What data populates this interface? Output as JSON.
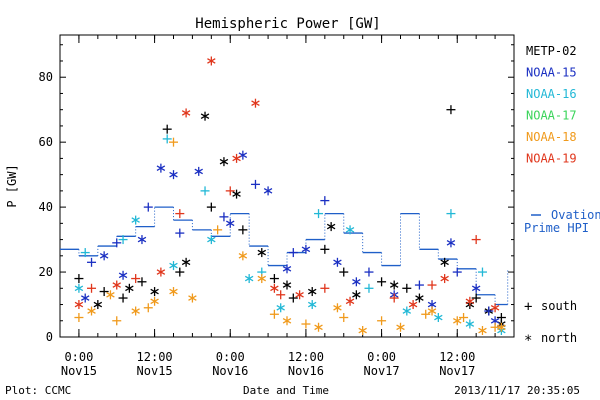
{
  "chart_data": {
    "type": "scatter",
    "title": "Hemispheric Power [GW]",
    "xlabel": "Date and Time",
    "ylabel": "P [GW]",
    "xlim": [
      "2013-11-14T21:00",
      "2013-11-17T21:00"
    ],
    "ylim": [
      0,
      93
    ],
    "yticks": [
      0,
      20,
      40,
      60,
      80
    ],
    "xticks": [
      {
        "t": "2013-11-15T00:00",
        "time": "0:00",
        "date": "Nov15"
      },
      {
        "t": "2013-11-15T12:00",
        "time": "12:00",
        "date": "Nov15"
      },
      {
        "t": "2013-11-16T00:00",
        "time": "0:00",
        "date": "Nov16"
      },
      {
        "t": "2013-11-16T12:00",
        "time": "12:00",
        "date": "Nov16"
      },
      {
        "t": "2013-11-17T00:00",
        "time": "0:00",
        "date": "Nov17"
      },
      {
        "t": "2013-11-17T12:00",
        "time": "12:00",
        "date": "Nov17"
      }
    ],
    "legend_placement": "right",
    "marker_legend": {
      "south": "south",
      "north": "north"
    },
    "ovation": {
      "name": "Ovation Prime HPI",
      "color": "#1f5fc8",
      "points": [
        [
          "2013-11-14T21:00",
          27
        ],
        [
          "2013-11-15T00:00",
          25
        ],
        [
          "2013-11-15T03:00",
          28
        ],
        [
          "2013-11-15T06:00",
          31
        ],
        [
          "2013-11-15T09:00",
          34
        ],
        [
          "2013-11-15T12:00",
          40
        ],
        [
          "2013-11-15T15:00",
          36
        ],
        [
          "2013-11-15T18:00",
          33
        ],
        [
          "2013-11-15T21:00",
          31
        ],
        [
          "2013-11-16T00:00",
          38
        ],
        [
          "2013-11-16T03:00",
          28
        ],
        [
          "2013-11-16T06:00",
          22
        ],
        [
          "2013-11-16T09:00",
          26
        ],
        [
          "2013-11-16T12:00",
          30
        ],
        [
          "2013-11-16T15:00",
          38
        ],
        [
          "2013-11-16T18:00",
          32
        ],
        [
          "2013-11-16T21:00",
          26
        ],
        [
          "2013-11-17T00:00",
          22
        ],
        [
          "2013-11-17T03:00",
          38
        ],
        [
          "2013-11-17T06:00",
          27
        ],
        [
          "2013-11-17T09:00",
          24
        ],
        [
          "2013-11-17T12:00",
          21
        ],
        [
          "2013-11-17T15:00",
          13
        ],
        [
          "2013-11-17T18:00",
          10
        ],
        [
          "2013-11-17T20:00",
          21
        ]
      ]
    },
    "series": [
      {
        "name": "METP-02",
        "color": "#000000",
        "south": [
          [
            "2013-11-15T00:00",
            18
          ],
          [
            "2013-11-15T04:00",
            14
          ],
          [
            "2013-11-15T07:00",
            12
          ],
          [
            "2013-11-15T10:00",
            17
          ],
          [
            "2013-11-15T14:00",
            64
          ],
          [
            "2013-11-15T16:00",
            20
          ],
          [
            "2013-11-15T21:00",
            40
          ],
          [
            "2013-11-16T02:00",
            33
          ],
          [
            "2013-11-16T07:00",
            18
          ],
          [
            "2013-11-16T10:00",
            12
          ],
          [
            "2013-11-16T15:00",
            27
          ],
          [
            "2013-11-16T18:00",
            20
          ],
          [
            "2013-11-17T00:00",
            17
          ],
          [
            "2013-11-17T04:00",
            15
          ],
          [
            "2013-11-17T11:00",
            70
          ],
          [
            "2013-11-17T15:00",
            12
          ],
          [
            "2013-11-17T19:00",
            6
          ]
        ],
        "north": [
          [
            "2013-11-15T03:00",
            10
          ],
          [
            "2013-11-15T08:00",
            15
          ],
          [
            "2013-11-15T12:00",
            14
          ],
          [
            "2013-11-15T17:00",
            23
          ],
          [
            "2013-11-15T20:00",
            68
          ],
          [
            "2013-11-15T23:00",
            54
          ],
          [
            "2013-11-16T01:00",
            44
          ],
          [
            "2013-11-16T05:00",
            26
          ],
          [
            "2013-11-16T09:00",
            16
          ],
          [
            "2013-11-16T13:00",
            14
          ],
          [
            "2013-11-16T16:00",
            34
          ],
          [
            "2013-11-16T20:00",
            13
          ],
          [
            "2013-11-17T02:00",
            16
          ],
          [
            "2013-11-17T06:00",
            12
          ],
          [
            "2013-11-17T10:00",
            23
          ],
          [
            "2013-11-17T14:00",
            10
          ],
          [
            "2013-11-17T17:00",
            8
          ],
          [
            "2013-11-17T19:00",
            4
          ]
        ]
      },
      {
        "name": "NOAA-15",
        "color": "#1a2fc2",
        "south": [
          [
            "2013-11-15T02:00",
            23
          ],
          [
            "2013-11-15T06:00",
            29
          ],
          [
            "2013-11-15T11:00",
            40
          ],
          [
            "2013-11-15T16:00",
            32
          ],
          [
            "2013-11-15T23:00",
            37
          ],
          [
            "2013-11-16T04:00",
            47
          ],
          [
            "2013-11-16T10:00",
            26
          ],
          [
            "2013-11-16T15:00",
            42
          ],
          [
            "2013-11-16T22:00",
            20
          ],
          [
            "2013-11-17T06:00",
            16
          ],
          [
            "2013-11-17T12:00",
            20
          ],
          [
            "2013-11-17T17:00",
            8
          ]
        ],
        "north": [
          [
            "2013-11-15T01:00",
            12
          ],
          [
            "2013-11-15T04:00",
            25
          ],
          [
            "2013-11-15T07:00",
            19
          ],
          [
            "2013-11-15T10:00",
            30
          ],
          [
            "2013-11-15T13:00",
            52
          ],
          [
            "2013-11-15T15:00",
            50
          ],
          [
            "2013-11-15T19:00",
            51
          ],
          [
            "2013-11-16T00:00",
            35
          ],
          [
            "2013-11-16T02:00",
            56
          ],
          [
            "2013-11-16T06:00",
            45
          ],
          [
            "2013-11-16T09:00",
            21
          ],
          [
            "2013-11-16T12:00",
            27
          ],
          [
            "2013-11-16T17:00",
            23
          ],
          [
            "2013-11-16T20:00",
            17
          ],
          [
            "2013-11-17T02:00",
            13
          ],
          [
            "2013-11-17T08:00",
            10
          ],
          [
            "2013-11-17T11:00",
            29
          ],
          [
            "2013-11-17T15:00",
            15
          ],
          [
            "2013-11-17T18:00",
            5
          ]
        ]
      },
      {
        "name": "NOAA-16",
        "color": "#22b8d6",
        "south": [
          [
            "2013-11-15T01:00",
            26
          ],
          [
            "2013-11-15T07:00",
            30
          ],
          [
            "2013-11-15T14:00",
            61
          ],
          [
            "2013-11-15T20:00",
            45
          ],
          [
            "2013-11-16T05:00",
            20
          ],
          [
            "2013-11-16T14:00",
            38
          ],
          [
            "2013-11-16T22:00",
            15
          ],
          [
            "2013-11-17T11:00",
            38
          ],
          [
            "2013-11-17T16:00",
            20
          ]
        ],
        "north": [
          [
            "2013-11-15T00:00",
            15
          ],
          [
            "2013-11-15T09:00",
            36
          ],
          [
            "2013-11-15T15:00",
            22
          ],
          [
            "2013-11-15T21:00",
            30
          ],
          [
            "2013-11-16T03:00",
            18
          ],
          [
            "2013-11-16T08:00",
            9
          ],
          [
            "2013-11-16T13:00",
            10
          ],
          [
            "2013-11-16T19:00",
            33
          ],
          [
            "2013-11-17T04:00",
            8
          ],
          [
            "2013-11-17T09:00",
            6
          ],
          [
            "2013-11-17T14:00",
            4
          ],
          [
            "2013-11-17T19:00",
            2
          ]
        ]
      },
      {
        "name": "NOAA-17",
        "color": "#3ad45a",
        "south": [],
        "north": []
      },
      {
        "name": "NOAA-18",
        "color": "#f09a1c",
        "south": [
          [
            "2013-11-15T00:00",
            6
          ],
          [
            "2013-11-15T06:00",
            5
          ],
          [
            "2013-11-15T11:00",
            9
          ],
          [
            "2013-11-15T15:00",
            60
          ],
          [
            "2013-11-15T22:00",
            33
          ],
          [
            "2013-11-16T07:00",
            7
          ],
          [
            "2013-11-16T12:00",
            4
          ],
          [
            "2013-11-16T18:00",
            6
          ],
          [
            "2013-11-17T00:00",
            5
          ],
          [
            "2013-11-17T07:00",
            7
          ],
          [
            "2013-11-17T13:00",
            6
          ],
          [
            "2013-11-17T18:00",
            3
          ]
        ],
        "north": [
          [
            "2013-11-15T02:00",
            8
          ],
          [
            "2013-11-15T05:00",
            13
          ],
          [
            "2013-11-15T09:00",
            8
          ],
          [
            "2013-11-15T12:00",
            11
          ],
          [
            "2013-11-15T15:00",
            14
          ],
          [
            "2013-11-15T18:00",
            12
          ],
          [
            "2013-11-16T02:00",
            25
          ],
          [
            "2013-11-16T05:00",
            18
          ],
          [
            "2013-11-16T09:00",
            5
          ],
          [
            "2013-11-16T14:00",
            3
          ],
          [
            "2013-11-16T17:00",
            9
          ],
          [
            "2013-11-16T21:00",
            2
          ],
          [
            "2013-11-17T03:00",
            3
          ],
          [
            "2013-11-17T08:00",
            8
          ],
          [
            "2013-11-17T12:00",
            5
          ],
          [
            "2013-11-17T16:00",
            2
          ],
          [
            "2013-11-17T19:00",
            3
          ]
        ]
      },
      {
        "name": "NOAA-19",
        "color": "#e0361c",
        "south": [
          [
            "2013-11-15T02:00",
            15
          ],
          [
            "2013-11-15T09:00",
            18
          ],
          [
            "2013-11-15T16:00",
            38
          ],
          [
            "2013-11-16T00:00",
            45
          ],
          [
            "2013-11-16T08:00",
            13
          ],
          [
            "2013-11-16T15:00",
            15
          ],
          [
            "2013-11-17T02:00",
            12
          ],
          [
            "2013-11-17T08:00",
            16
          ],
          [
            "2013-11-17T15:00",
            30
          ]
        ],
        "north": [
          [
            "2013-11-15T00:00",
            10
          ],
          [
            "2013-11-15T06:00",
            16
          ],
          [
            "2013-11-15T13:00",
            20
          ],
          [
            "2013-11-15T17:00",
            69
          ],
          [
            "2013-11-15T21:00",
            85
          ],
          [
            "2013-11-16T01:00",
            55
          ],
          [
            "2013-11-16T04:00",
            72
          ],
          [
            "2013-11-16T07:00",
            15
          ],
          [
            "2013-11-16T11:00",
            13
          ],
          [
            "2013-11-16T19:00",
            11
          ],
          [
            "2013-11-17T05:00",
            10
          ],
          [
            "2013-11-17T10:00",
            18
          ],
          [
            "2013-11-17T14:00",
            11
          ],
          [
            "2013-11-17T18:00",
            9
          ]
        ]
      }
    ]
  },
  "footer": {
    "plot_credit": "Plot: CCMC",
    "timestamp": "2013/11/17 20:35:05"
  }
}
